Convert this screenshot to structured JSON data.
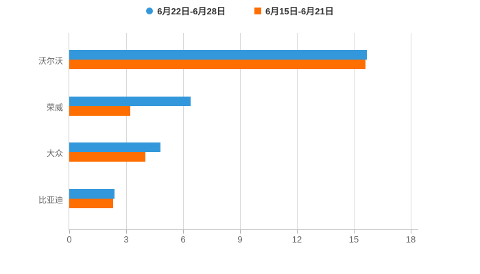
{
  "legend": {
    "items": [
      {
        "label": "6月22日-6月28日",
        "color": "#3398db",
        "shape": "circle"
      },
      {
        "label": "6月15日-6月21日",
        "color": "#ff6e00",
        "shape": "square"
      }
    ]
  },
  "chart_data": {
    "type": "bar",
    "orientation": "horizontal",
    "categories": [
      "沃尔沃",
      "荣威",
      "大众",
      "比亚迪"
    ],
    "series": [
      {
        "name": "6月22日-6月28日",
        "color": "#3398db",
        "values": [
          15.7,
          6.4,
          4.8,
          2.4
        ]
      },
      {
        "name": "6月15日-6月21日",
        "color": "#ff6e00",
        "values": [
          15.6,
          3.2,
          4.0,
          2.3
        ]
      }
    ],
    "x_ticks": [
      0,
      3,
      6,
      9,
      12,
      15,
      18
    ],
    "xlim": [
      0,
      18
    ],
    "grid": true,
    "legend_position": "top",
    "colors": {
      "gridline": "#d9d9d9",
      "axis_line": "#b0b0b0",
      "tick_text": "#666666",
      "category_text": "#666666",
      "legend_text": "#333333",
      "background": "#ffffff"
    }
  }
}
